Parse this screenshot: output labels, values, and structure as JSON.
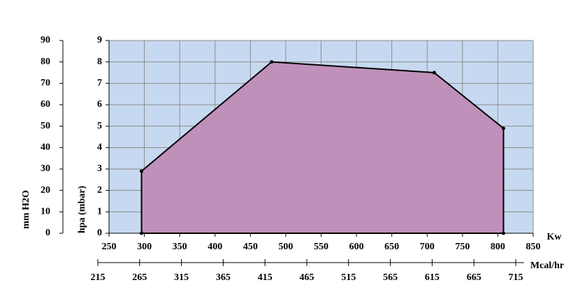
{
  "chart_data": {
    "type": "area",
    "x": [
      296,
      296,
      480,
      710,
      808,
      808
    ],
    "values": [
      0,
      2.9,
      8,
      7.5,
      4.9,
      0
    ],
    "fill": "#bf90b9",
    "line_color": "#000000",
    "background": "#c6d9f0",
    "grid": true,
    "xlabel": "Kw",
    "xlim": [
      250,
      850
    ],
    "xticks": [
      250,
      300,
      350,
      400,
      450,
      500,
      550,
      600,
      650,
      700,
      750,
      800,
      850
    ],
    "ylabel": "hpa (mbar)",
    "ylim": [
      0,
      9
    ],
    "yticks": [
      0,
      1,
      2,
      3,
      4,
      5,
      6,
      7,
      8,
      9
    ],
    "y2label": "mm H2O",
    "y2lim": [
      0,
      90
    ],
    "y2ticks": [
      0,
      10,
      20,
      30,
      40,
      50,
      60,
      70,
      80,
      90
    ],
    "x2label": "Mcal/hr",
    "x2lim": [
      215,
      725
    ],
    "x2ticks": [
      215,
      265,
      315,
      365,
      415,
      465,
      515,
      565,
      615,
      665,
      715
    ]
  }
}
